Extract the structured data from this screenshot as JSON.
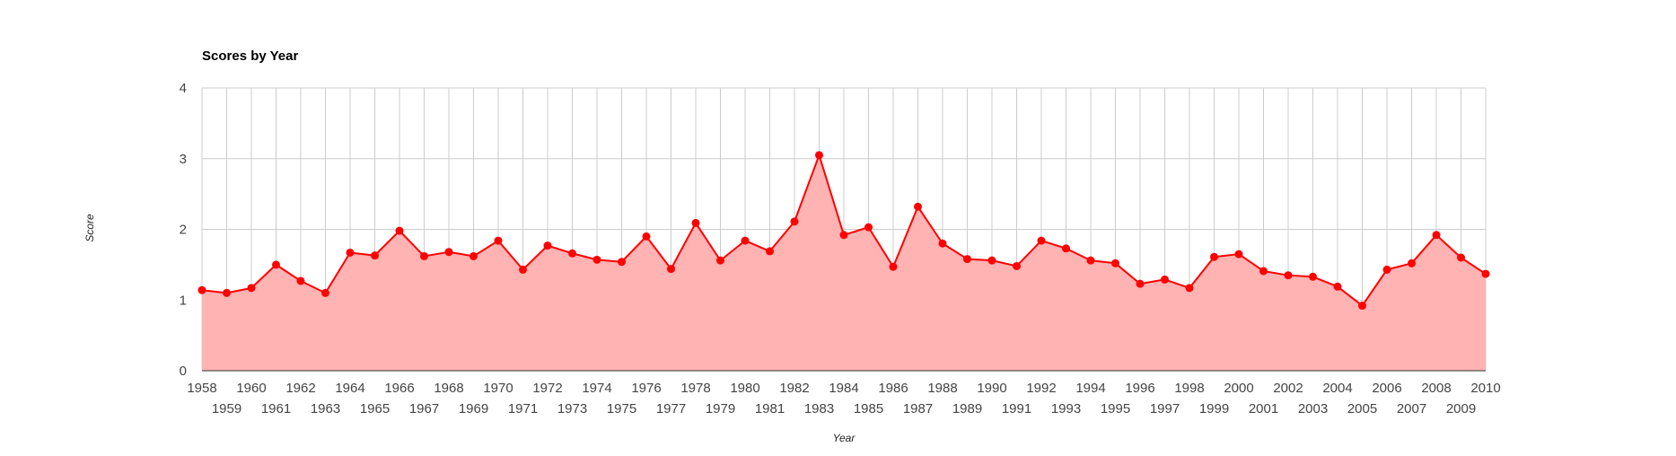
{
  "chart_data": {
    "type": "area",
    "title": "Scores by Year",
    "xlabel": "Year",
    "ylabel": "Score",
    "ylim": [
      0,
      4
    ],
    "yticks": [
      "0",
      "1",
      "2",
      "3",
      "4"
    ],
    "grid": true,
    "legend": "none",
    "colors": {
      "line": "#ff0000",
      "fill": "#ffb3b3",
      "point": "#ff0000"
    },
    "x": [
      "1958",
      "1959",
      "1960",
      "1961",
      "1962",
      "1963",
      "1964",
      "1965",
      "1966",
      "1967",
      "1968",
      "1969",
      "1970",
      "1971",
      "1972",
      "1973",
      "1974",
      "1975",
      "1976",
      "1977",
      "1978",
      "1979",
      "1980",
      "1981",
      "1982",
      "1983",
      "1984",
      "1985",
      "1986",
      "1987",
      "1988",
      "1989",
      "1990",
      "1991",
      "1992",
      "1993",
      "1994",
      "1995",
      "1996",
      "1997",
      "1998",
      "1999",
      "2000",
      "2001",
      "2002",
      "2003",
      "2004",
      "2005",
      "2006",
      "2007",
      "2008",
      "2009",
      "2010"
    ],
    "values": [
      1.14,
      1.1,
      1.17,
      1.5,
      1.27,
      1.1,
      1.67,
      1.63,
      1.98,
      1.62,
      1.68,
      1.62,
      1.84,
      1.43,
      1.77,
      1.66,
      1.57,
      1.54,
      1.9,
      1.44,
      2.09,
      1.56,
      1.84,
      1.69,
      2.11,
      3.05,
      1.92,
      2.03,
      1.47,
      2.32,
      1.8,
      1.58,
      1.56,
      1.48,
      1.84,
      1.73,
      1.56,
      1.52,
      1.23,
      1.29,
      1.17,
      1.61,
      1.65,
      1.41,
      1.35,
      1.33,
      1.19,
      0.92,
      1.43,
      1.52,
      1.92,
      1.6,
      1.37
    ]
  }
}
